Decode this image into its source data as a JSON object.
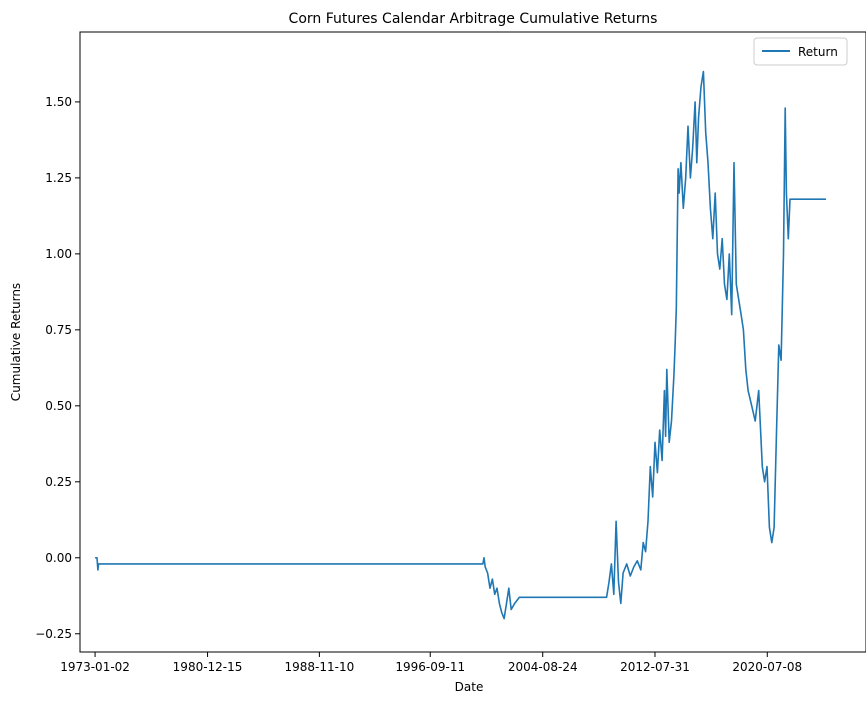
{
  "chart_data": {
    "type": "line",
    "title": "Corn Futures Calendar Arbitrage Cumulative Returns",
    "xlabel": "Date",
    "ylabel": "Cumulative Returns",
    "x_range": [
      "1971-12-10",
      "2027-07-01"
    ],
    "ylim": [
      -0.31,
      1.73
    ],
    "x_tick_labels": [
      "1973-01-02",
      "1980-12-15",
      "1988-11-10",
      "1996-09-11",
      "2004-08-24",
      "2012-07-31",
      "2020-07-08"
    ],
    "y_ticks": [
      -0.25,
      0.0,
      0.25,
      0.5,
      0.75,
      1.0,
      1.25,
      1.5
    ],
    "y_tick_labels": [
      "−0.25",
      "0.00",
      "0.25",
      "0.50",
      "0.75",
      "1.00",
      "1.25",
      "1.50"
    ],
    "grid": false,
    "legend_position": "top-right",
    "series": [
      {
        "name": "Return",
        "color": "#1f77b4",
        "points": [
          [
            "1973-01-02",
            0.0
          ],
          [
            "1973-02-20",
            0.0
          ],
          [
            "1973-03-15",
            -0.04
          ],
          [
            "1973-04-01",
            -0.02
          ],
          [
            "1973-06-01",
            -0.02
          ],
          [
            "2000-06-01",
            -0.02
          ],
          [
            "2000-07-01",
            0.0
          ],
          [
            "2000-08-01",
            -0.03
          ],
          [
            "2000-10-01",
            -0.05
          ],
          [
            "2000-12-01",
            -0.1
          ],
          [
            "2001-02-01",
            -0.07
          ],
          [
            "2001-04-01",
            -0.12
          ],
          [
            "2001-06-01",
            -0.1
          ],
          [
            "2001-08-01",
            -0.15
          ],
          [
            "2001-10-01",
            -0.18
          ],
          [
            "2001-12-01",
            -0.2
          ],
          [
            "2002-02-01",
            -0.15
          ],
          [
            "2002-04-01",
            -0.1
          ],
          [
            "2002-06-01",
            -0.17
          ],
          [
            "2002-09-01",
            -0.15
          ],
          [
            "2003-01-01",
            -0.13
          ],
          [
            "2003-03-01",
            -0.13
          ],
          [
            "2009-03-01",
            -0.13
          ],
          [
            "2009-05-01",
            -0.08
          ],
          [
            "2009-07-01",
            -0.02
          ],
          [
            "2009-09-01",
            -0.12
          ],
          [
            "2009-11-01",
            0.12
          ],
          [
            "2010-01-01",
            -0.08
          ],
          [
            "2010-03-01",
            -0.15
          ],
          [
            "2010-05-01",
            -0.05
          ],
          [
            "2010-08-01",
            -0.02
          ],
          [
            "2010-11-01",
            -0.06
          ],
          [
            "2011-02-01",
            -0.03
          ],
          [
            "2011-05-01",
            -0.01
          ],
          [
            "2011-08-01",
            -0.04
          ],
          [
            "2011-10-01",
            0.05
          ],
          [
            "2011-12-01",
            0.02
          ],
          [
            "2012-02-01",
            0.12
          ],
          [
            "2012-04-01",
            0.3
          ],
          [
            "2012-06-01",
            0.2
          ],
          [
            "2012-08-01",
            0.38
          ],
          [
            "2012-10-01",
            0.28
          ],
          [
            "2012-12-01",
            0.42
          ],
          [
            "2013-02-01",
            0.32
          ],
          [
            "2013-04-01",
            0.55
          ],
          [
            "2013-05-01",
            0.4
          ],
          [
            "2013-06-01",
            0.62
          ],
          [
            "2013-07-01",
            0.5
          ],
          [
            "2013-08-01",
            0.38
          ],
          [
            "2013-10-01",
            0.45
          ],
          [
            "2013-12-01",
            0.6
          ],
          [
            "2014-01-01",
            0.7
          ],
          [
            "2014-02-01",
            0.82
          ],
          [
            "2014-03-01",
            1.1
          ],
          [
            "2014-03-20",
            1.28
          ],
          [
            "2014-04-15",
            1.2
          ],
          [
            "2014-06-01",
            1.3
          ],
          [
            "2014-08-01",
            1.15
          ],
          [
            "2014-10-01",
            1.25
          ],
          [
            "2014-12-01",
            1.42
          ],
          [
            "2015-02-01",
            1.25
          ],
          [
            "2015-04-01",
            1.35
          ],
          [
            "2015-06-01",
            1.5
          ],
          [
            "2015-07-15",
            1.3
          ],
          [
            "2015-09-01",
            1.45
          ],
          [
            "2015-11-01",
            1.55
          ],
          [
            "2016-01-01",
            1.6
          ],
          [
            "2016-03-01",
            1.4
          ],
          [
            "2016-05-01",
            1.3
          ],
          [
            "2016-07-01",
            1.15
          ],
          [
            "2016-09-01",
            1.05
          ],
          [
            "2016-11-01",
            1.2
          ],
          [
            "2017-01-01",
            1.0
          ],
          [
            "2017-03-01",
            0.95
          ],
          [
            "2017-05-01",
            1.05
          ],
          [
            "2017-07-01",
            0.9
          ],
          [
            "2017-09-01",
            0.85
          ],
          [
            "2017-11-01",
            1.0
          ],
          [
            "2018-01-01",
            0.8
          ],
          [
            "2018-03-01",
            1.3
          ],
          [
            "2018-05-01",
            0.9
          ],
          [
            "2018-07-01",
            0.85
          ],
          [
            "2018-09-01",
            0.8
          ],
          [
            "2018-11-01",
            0.75
          ],
          [
            "2019-01-01",
            0.62
          ],
          [
            "2019-03-01",
            0.55
          ],
          [
            "2019-06-01",
            0.5
          ],
          [
            "2019-09-01",
            0.45
          ],
          [
            "2019-12-01",
            0.55
          ],
          [
            "2020-03-01",
            0.3
          ],
          [
            "2020-05-01",
            0.25
          ],
          [
            "2020-07-01",
            0.3
          ],
          [
            "2020-09-01",
            0.1
          ],
          [
            "2020-11-01",
            0.05
          ],
          [
            "2021-01-01",
            0.1
          ],
          [
            "2021-03-01",
            0.4
          ],
          [
            "2021-05-01",
            0.7
          ],
          [
            "2021-07-01",
            0.65
          ],
          [
            "2021-09-01",
            1.0
          ],
          [
            "2021-10-15",
            1.48
          ],
          [
            "2021-11-15",
            1.2
          ],
          [
            "2022-01-01",
            1.05
          ],
          [
            "2022-02-15",
            1.18
          ],
          [
            "2024-09-01",
            1.18
          ]
        ]
      }
    ]
  }
}
